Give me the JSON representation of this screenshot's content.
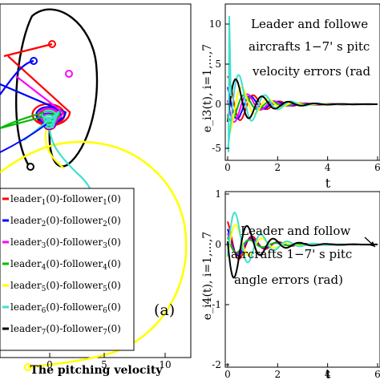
{
  "left_panel": {
    "xlabel": "The pitching velocity",
    "x_ticks": [
      "0",
      "5",
      "10"
    ],
    "panel_tag": "(a)",
    "legend": [
      {
        "text": "leader",
        "i": "1"
      },
      {
        "text": "leader",
        "i": "2"
      },
      {
        "text": "leader",
        "i": "3"
      },
      {
        "text": "leader",
        "i": "4"
      },
      {
        "text": "leader",
        "i": "5"
      },
      {
        "text": "leader",
        "i": "6"
      },
      {
        "text": "leader",
        "i": "7"
      }
    ],
    "colors": [
      "#ff0000",
      "#0000ff",
      "#ff00ff",
      "#00bb00",
      "#ffff00",
      "#40e0d0",
      "#000000"
    ]
  },
  "chart_data": [
    {
      "type": "line",
      "ylabel": "e_i3(t), i=1,...,7",
      "xlabel": "t",
      "x_ticks": [
        "0",
        "2",
        "4",
        "6"
      ],
      "y_ticks": [
        "-5",
        "0",
        "5",
        "10"
      ],
      "ylim": [
        -6,
        12
      ],
      "xlim": [
        0,
        6
      ],
      "annotation": [
        "Leader and followe",
        "aircrafts 1−7' s pitc",
        "velocity errors (rad"
      ]
    },
    {
      "type": "line",
      "ylabel": "e_i4(t), i=1,...,7",
      "xlabel": "t",
      "x_ticks": [
        "0",
        "2",
        "4",
        "6"
      ],
      "y_ticks": [
        "-2",
        "-1",
        "0",
        "1"
      ],
      "ylim": [
        -2,
        1.5
      ],
      "xlim": [
        0,
        6
      ],
      "annotation": [
        "Leader and follow",
        "aircrafts 1−7' s pitc",
        "angle errors (rad)"
      ]
    }
  ]
}
